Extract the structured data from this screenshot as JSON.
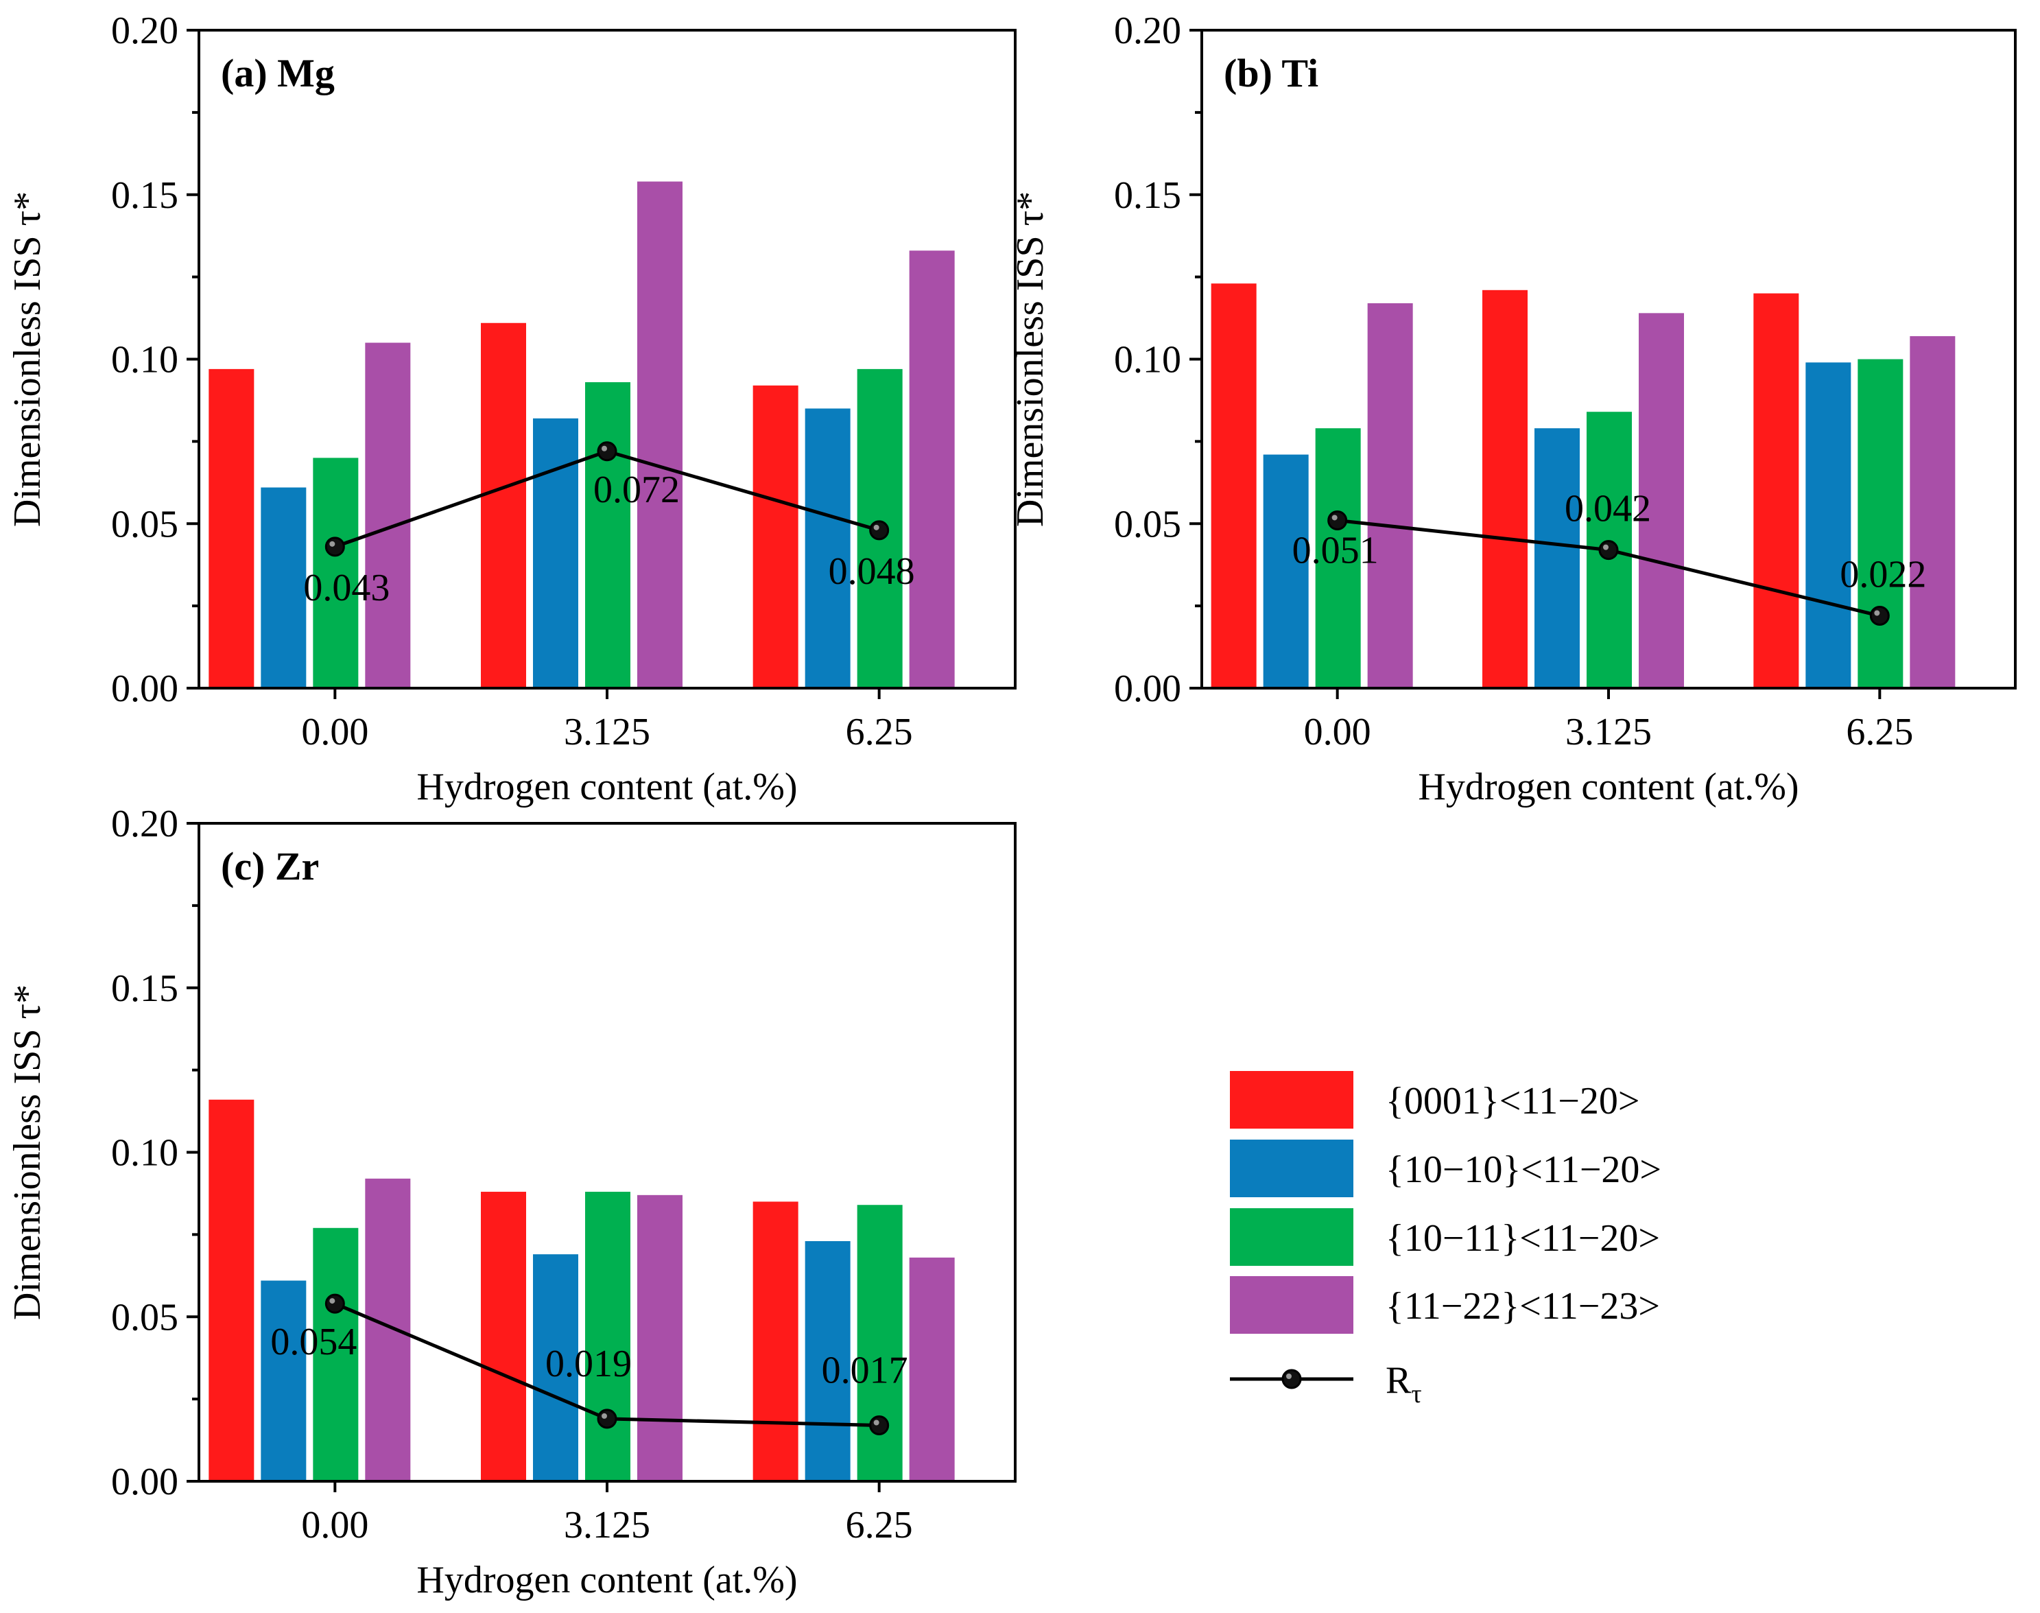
{
  "chart_data": [
    {
      "type": "bar",
      "panel_label": "(a) Mg",
      "categories": [
        "0.00",
        "3.125",
        "6.25"
      ],
      "series": [
        {
          "name": "{0001}<11−20>",
          "color": "#ff1a1a",
          "values": [
            0.097,
            0.111,
            0.092
          ]
        },
        {
          "name": "{10−10}<11−20>",
          "color": "#0a7dbd",
          "values": [
            0.061,
            0.082,
            0.085
          ]
        },
        {
          "name": "{10−11}<11−20>",
          "color": "#00b050",
          "values": [
            0.07,
            0.093,
            0.097
          ]
        },
        {
          "name": "{11−22}<11−23>",
          "color": "#a94fa8",
          "values": [
            0.105,
            0.154,
            0.133
          ]
        }
      ],
      "line": {
        "name": "Rτ",
        "values": [
          0.043,
          0.072,
          0.048
        ],
        "labels": [
          "0.043",
          "0.072",
          "0.048"
        ]
      },
      "xlabel": "Hydrogen content (at.%)",
      "ylabel": "Dimensionless ISS τ*",
      "ylim": [
        0,
        0.2
      ],
      "yticks": [
        "0.00",
        "0.05",
        "0.10",
        "0.15",
        "0.20"
      ]
    },
    {
      "type": "bar",
      "panel_label": "(b) Ti",
      "categories": [
        "0.00",
        "3.125",
        "6.25"
      ],
      "series": [
        {
          "name": "{0001}<11−20>",
          "color": "#ff1a1a",
          "values": [
            0.123,
            0.121,
            0.12
          ]
        },
        {
          "name": "{10−10}<11−20>",
          "color": "#0a7dbd",
          "values": [
            0.071,
            0.079,
            0.099
          ]
        },
        {
          "name": "{10−11}<11−20>",
          "color": "#00b050",
          "values": [
            0.079,
            0.084,
            0.1
          ]
        },
        {
          "name": "{11−22}<11−23>",
          "color": "#a94fa8",
          "values": [
            0.117,
            0.114,
            0.107
          ]
        }
      ],
      "line": {
        "name": "Rτ",
        "values": [
          0.051,
          0.042,
          0.022
        ],
        "labels": [
          "0.051",
          "0.042",
          "0.022"
        ]
      },
      "xlabel": "Hydrogen content (at.%)",
      "ylabel": "Dimensionless ISS τ*",
      "ylim": [
        0,
        0.2
      ],
      "yticks": [
        "0.00",
        "0.05",
        "0.10",
        "0.15",
        "0.20"
      ]
    },
    {
      "type": "bar",
      "panel_label": "(c) Zr",
      "categories": [
        "0.00",
        "3.125",
        "6.25"
      ],
      "series": [
        {
          "name": "{0001}<11−20>",
          "color": "#ff1a1a",
          "values": [
            0.116,
            0.088,
            0.085
          ]
        },
        {
          "name": "{10−10}<11−20>",
          "color": "#0a7dbd",
          "values": [
            0.061,
            0.069,
            0.073
          ]
        },
        {
          "name": "{10−11}<11−20>",
          "color": "#00b050",
          "values": [
            0.077,
            0.088,
            0.084
          ]
        },
        {
          "name": "{11−22}<11−23>",
          "color": "#a94fa8",
          "values": [
            0.092,
            0.087,
            0.068
          ]
        }
      ],
      "line": {
        "name": "Rτ",
        "values": [
          0.054,
          0.019,
          0.017
        ],
        "labels": [
          "0.054",
          "0.019",
          "0.017"
        ]
      },
      "xlabel": "Hydrogen content (at.%)",
      "ylabel": "Dimensionless ISS τ*",
      "ylim": [
        0,
        0.2
      ],
      "yticks": [
        "0.00",
        "0.05",
        "0.10",
        "0.15",
        "0.20"
      ]
    }
  ],
  "legend": {
    "items": [
      {
        "label": "{0001}<11−20>",
        "color": "#ff1a1a",
        "kind": "bar"
      },
      {
        "label": "{10−10}<11−20>",
        "color": "#0a7dbd",
        "kind": "bar"
      },
      {
        "label": "{10−11}<11−20>",
        "color": "#00b050",
        "kind": "bar"
      },
      {
        "label": "{11−22}<11−23>",
        "color": "#a94fa8",
        "kind": "bar"
      }
    ],
    "line_item": {
      "main": "R",
      "sub": "τ"
    }
  }
}
